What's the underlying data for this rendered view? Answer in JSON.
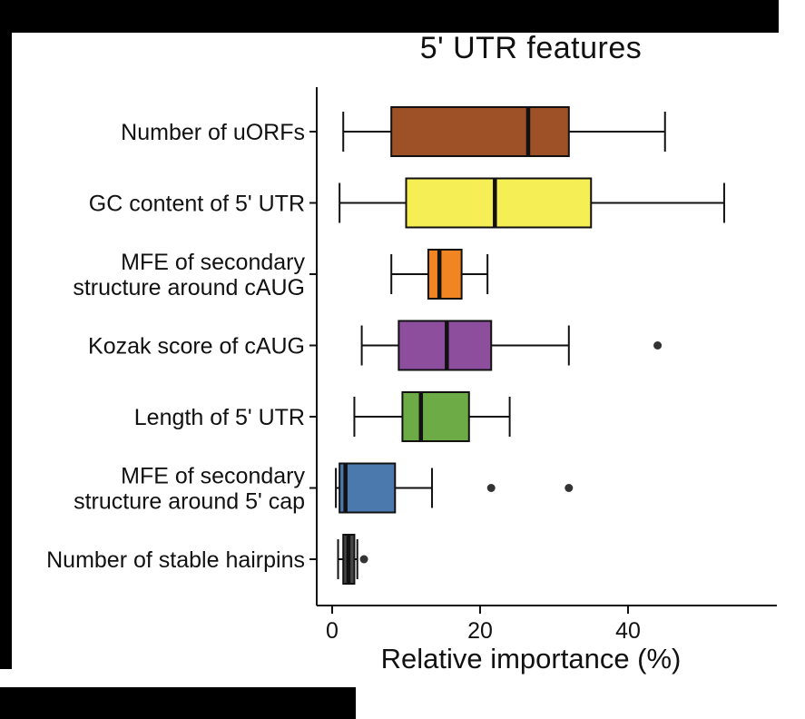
{
  "chart_data": {
    "type": "boxplot",
    "orientation": "horizontal",
    "title": "5' UTR features",
    "xlabel": "Relative importance (%)",
    "x_ticks": [
      0,
      20,
      40
    ],
    "xlim": [
      -2,
      57
    ],
    "grid": false,
    "legend": "none",
    "series": [
      {
        "label": "Number of uORFs",
        "label_lines": [
          "Number of uORFs"
        ],
        "color": "#9E5126",
        "whisker_low": 1.5,
        "q1": 8,
        "median": 26.5,
        "q3": 32,
        "whisker_high": 45,
        "outliers": []
      },
      {
        "label": "GC content of 5' UTR",
        "label_lines": [
          "GC content of 5' UTR"
        ],
        "color": "#F5EE54",
        "whisker_low": 1,
        "q1": 10,
        "median": 22,
        "q3": 35,
        "whisker_high": 53,
        "outliers": []
      },
      {
        "label": "MFE of secondary structure around cAUG",
        "label_lines": [
          "MFE of secondary",
          "structure around cAUG"
        ],
        "color": "#F08522",
        "whisker_low": 8,
        "q1": 13,
        "median": 14.5,
        "q3": 17.5,
        "whisker_high": 21,
        "outliers": []
      },
      {
        "label": "Kozak score of cAUG",
        "label_lines": [
          "Kozak score of cAUG"
        ],
        "color": "#8D4E9E",
        "whisker_low": 4,
        "q1": 9,
        "median": 15.5,
        "q3": 21.5,
        "whisker_high": 32,
        "outliers": [
          44
        ]
      },
      {
        "label": "Length of 5' UTR",
        "label_lines": [
          "Length of 5' UTR"
        ],
        "color": "#6DAB46",
        "whisker_low": 3,
        "q1": 9.5,
        "median": 12,
        "q3": 18.5,
        "whisker_high": 24,
        "outliers": []
      },
      {
        "label": "MFE of secondary structure around 5' cap",
        "label_lines": [
          "MFE of secondary",
          "structure around 5' cap"
        ],
        "color": "#4B79AE",
        "whisker_low": 0.5,
        "q1": 1,
        "median": 1.8,
        "q3": 8.5,
        "whisker_high": 13.5,
        "outliers": [
          21.5,
          32
        ]
      },
      {
        "label": "Number of stable hairpins",
        "label_lines": [
          "Number of stable hairpins"
        ],
        "color": "#474747",
        "whisker_low": 0.8,
        "q1": 1.5,
        "median": 2.2,
        "q3": 3,
        "whisker_high": 3.4,
        "outliers": [
          4.3
        ]
      }
    ]
  }
}
